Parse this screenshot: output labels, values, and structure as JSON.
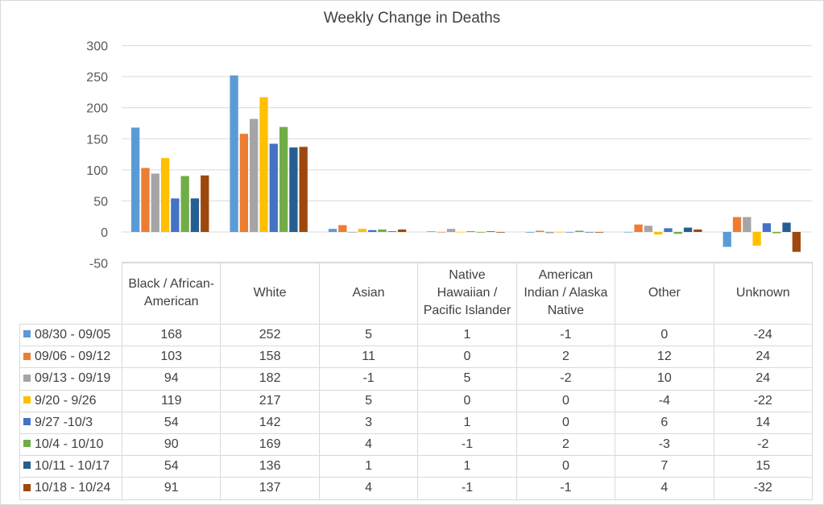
{
  "chart_data": {
    "type": "bar",
    "title": "Weekly Change in Deaths",
    "categories": [
      "Black / African-American",
      "White",
      "Asian",
      "Native Hawaiian / Pacific Islander",
      "American Indian / Alaska Native",
      "Other",
      "Unknown"
    ],
    "ylim": [
      -50,
      300
    ],
    "yticks": [
      -50,
      0,
      50,
      100,
      150,
      200,
      250,
      300
    ],
    "grid": true,
    "legend": "data-table",
    "series": [
      {
        "name": "08/30 - 09/05",
        "color": "#5b9bd5",
        "values": [
          168,
          252,
          5,
          1,
          -1,
          0,
          -24
        ]
      },
      {
        "name": "09/06 - 09/12",
        "color": "#ed7d31",
        "values": [
          103,
          158,
          11,
          0,
          2,
          12,
          24
        ]
      },
      {
        "name": "09/13 - 09/19",
        "color": "#a5a5a5",
        "values": [
          94,
          182,
          -1,
          5,
          -2,
          10,
          24
        ]
      },
      {
        "name": "9/20 - 9/26",
        "color": "#ffc000",
        "values": [
          119,
          217,
          5,
          0,
          0,
          -4,
          -22
        ]
      },
      {
        "name": "9/27 -10/3",
        "color": "#4472c4",
        "values": [
          54,
          142,
          3,
          1,
          0,
          6,
          14
        ]
      },
      {
        "name": "10/4 - 10/10",
        "color": "#70ad47",
        "values": [
          90,
          169,
          4,
          -1,
          2,
          -3,
          -2
        ]
      },
      {
        "name": "10/11 - 10/17",
        "color": "#255e91",
        "values": [
          54,
          136,
          1,
          1,
          0,
          7,
          15
        ]
      },
      {
        "name": "10/18 - 10/24",
        "color": "#9e480e",
        "values": [
          91,
          137,
          4,
          -1,
          -1,
          4,
          -32
        ]
      }
    ]
  },
  "table_headers": [
    [
      "Black / African-",
      "American"
    ],
    [
      "White"
    ],
    [
      "Asian"
    ],
    [
      "Native",
      "Hawaiian /",
      "Pacific Islander"
    ],
    [
      "American",
      "Indian / Alaska",
      "Native"
    ],
    [
      "Other"
    ],
    [
      "Unknown"
    ]
  ]
}
